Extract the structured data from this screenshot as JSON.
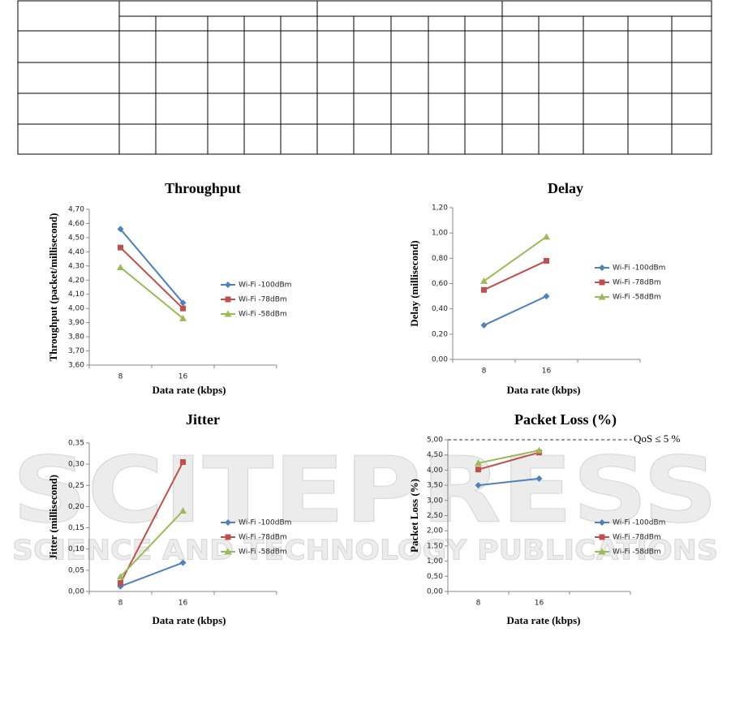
{
  "watermark": {
    "title": "SCITEPRESS",
    "subtitle": "SCIENCE AND TECHNOLOGY PUBLICATIONS"
  },
  "chart_data": [
    {
      "type": "line",
      "title": "Throughput",
      "x_label": "Data rate (kbps)",
      "y_label": "Throughput (packet/millisecond)",
      "categories": [
        "8",
        "16",
        null
      ],
      "series": [
        {
          "name": "Wi-Fi  -100dBm",
          "color": "#4f81bd",
          "marker": "diamond",
          "values": [
            4.56,
            4.04,
            null
          ]
        },
        {
          "name": "Wi-Fi  -78dBm",
          "color": "#c0504d",
          "marker": "square",
          "values": [
            4.43,
            4.0,
            null
          ]
        },
        {
          "name": "Wi-Fi  -58dBm",
          "color": "#9bbb59",
          "marker": "triangle",
          "values": [
            4.29,
            3.93,
            null
          ]
        }
      ],
      "ylim": [
        3.6,
        4.7
      ],
      "yticks": [
        {
          "value": 3.6,
          "label": "3,60"
        },
        {
          "value": 3.7,
          "label": "3,70"
        },
        {
          "value": 3.8,
          "label": "3,80"
        },
        {
          "value": 3.9,
          "label": "3,90"
        },
        {
          "value": 4.0,
          "label": "4,00"
        },
        {
          "value": 4.1,
          "label": "4,10"
        },
        {
          "value": 4.2,
          "label": "4,20"
        },
        {
          "value": 4.3,
          "label": "4,30"
        },
        {
          "value": 4.4,
          "label": "4,40"
        },
        {
          "value": 4.5,
          "label": "4,50"
        },
        {
          "value": 4.6,
          "label": "4,60"
        },
        {
          "value": 4.7,
          "label": "4,70"
        }
      ],
      "grid": false,
      "legend": "right"
    },
    {
      "type": "line",
      "title": "Delay",
      "x_label": "Data rate (kbps)",
      "y_label": "Delay (millisecond)",
      "categories": [
        "8",
        "16",
        null
      ],
      "series": [
        {
          "name": "Wi-Fi  -100dBm",
          "color": "#4f81bd",
          "marker": "diamond",
          "values": [
            0.27,
            0.5,
            null
          ]
        },
        {
          "name": "Wi-Fi  -78dBm",
          "color": "#c0504d",
          "marker": "square",
          "values": [
            0.55,
            0.78,
            null
          ]
        },
        {
          "name": "Wi-Fi  -58dBm",
          "color": "#9bbb59",
          "marker": "triangle",
          "values": [
            0.62,
            0.97,
            null
          ]
        }
      ],
      "ylim": [
        0,
        1.2
      ],
      "yticks": [
        {
          "value": 0,
          "label": "0,00"
        },
        {
          "value": 0.2,
          "label": "0,20"
        },
        {
          "value": 0.4,
          "label": "0,40"
        },
        {
          "value": 0.6,
          "label": "0,60"
        },
        {
          "value": 0.8,
          "label": "0,80"
        },
        {
          "value": 1.0,
          "label": "1,00"
        },
        {
          "value": 1.2,
          "label": "1,20"
        }
      ],
      "grid": false,
      "legend": "right"
    },
    {
      "type": "line",
      "title": "Jitter",
      "x_label": "Data rate (kbps)",
      "y_label": "Jitter (millisecond)",
      "categories": [
        "8",
        "16",
        null
      ],
      "series": [
        {
          "name": "Wi-Fi  -100dBm",
          "color": "#4f81bd",
          "marker": "diamond",
          "values": [
            0.012,
            0.068,
            null
          ]
        },
        {
          "name": "Wi-Fi  -78dBm",
          "color": "#c0504d",
          "marker": "square",
          "values": [
            0.02,
            0.305,
            null
          ]
        },
        {
          "name": "Wi-Fi  -58dBm",
          "color": "#9bbb59",
          "marker": "triangle",
          "values": [
            0.035,
            0.19,
            null
          ]
        }
      ],
      "ylim": [
        0,
        0.35
      ],
      "yticks": [
        {
          "value": 0,
          "label": "0,00"
        },
        {
          "value": 0.05,
          "label": "0,05"
        },
        {
          "value": 0.1,
          "label": "0,10"
        },
        {
          "value": 0.15,
          "label": "0,15"
        },
        {
          "value": 0.2,
          "label": "0,20"
        },
        {
          "value": 0.25,
          "label": "0,25"
        },
        {
          "value": 0.3,
          "label": "0,30"
        },
        {
          "value": 0.35,
          "label": "0,35"
        }
      ],
      "grid": false,
      "legend": "right"
    },
    {
      "type": "line",
      "title": "Packet Loss (%)",
      "x_label": "Data rate (kbps)",
      "y_label": "Packet Loss (%)",
      "categories": [
        "8",
        "16",
        null
      ],
      "series": [
        {
          "name": "Wi-Fi  -100dBm",
          "color": "#4f81bd",
          "marker": "diamond",
          "values": [
            3.5,
            3.72,
            null
          ]
        },
        {
          "name": "Wi-Fi  -78dBm",
          "color": "#c0504d",
          "marker": "square",
          "values": [
            4.02,
            4.58,
            null
          ]
        },
        {
          "name": "Wi-Fi  -58dBm",
          "color": "#9bbb59",
          "marker": "triangle",
          "values": [
            4.23,
            4.65,
            null
          ]
        }
      ],
      "ylim": [
        0,
        5
      ],
      "yticks": [
        {
          "value": 0,
          "label": "0,00"
        },
        {
          "value": 0.5,
          "label": "0,50"
        },
        {
          "value": 1.0,
          "label": "1,00"
        },
        {
          "value": 1.5,
          "label": "1,50"
        },
        {
          "value": 2.0,
          "label": "2,00"
        },
        {
          "value": 2.5,
          "label": "2,50"
        },
        {
          "value": 3.0,
          "label": "3,00"
        },
        {
          "value": 3.5,
          "label": "3,50"
        },
        {
          "value": 4.0,
          "label": "4,00"
        },
        {
          "value": 4.5,
          "label": "4,50"
        },
        {
          "value": 5.0,
          "label": "5,00"
        }
      ],
      "annotation": {
        "text": "QoS ≤ 5 %",
        "value": 5
      },
      "grid": false,
      "legend": "right"
    }
  ]
}
